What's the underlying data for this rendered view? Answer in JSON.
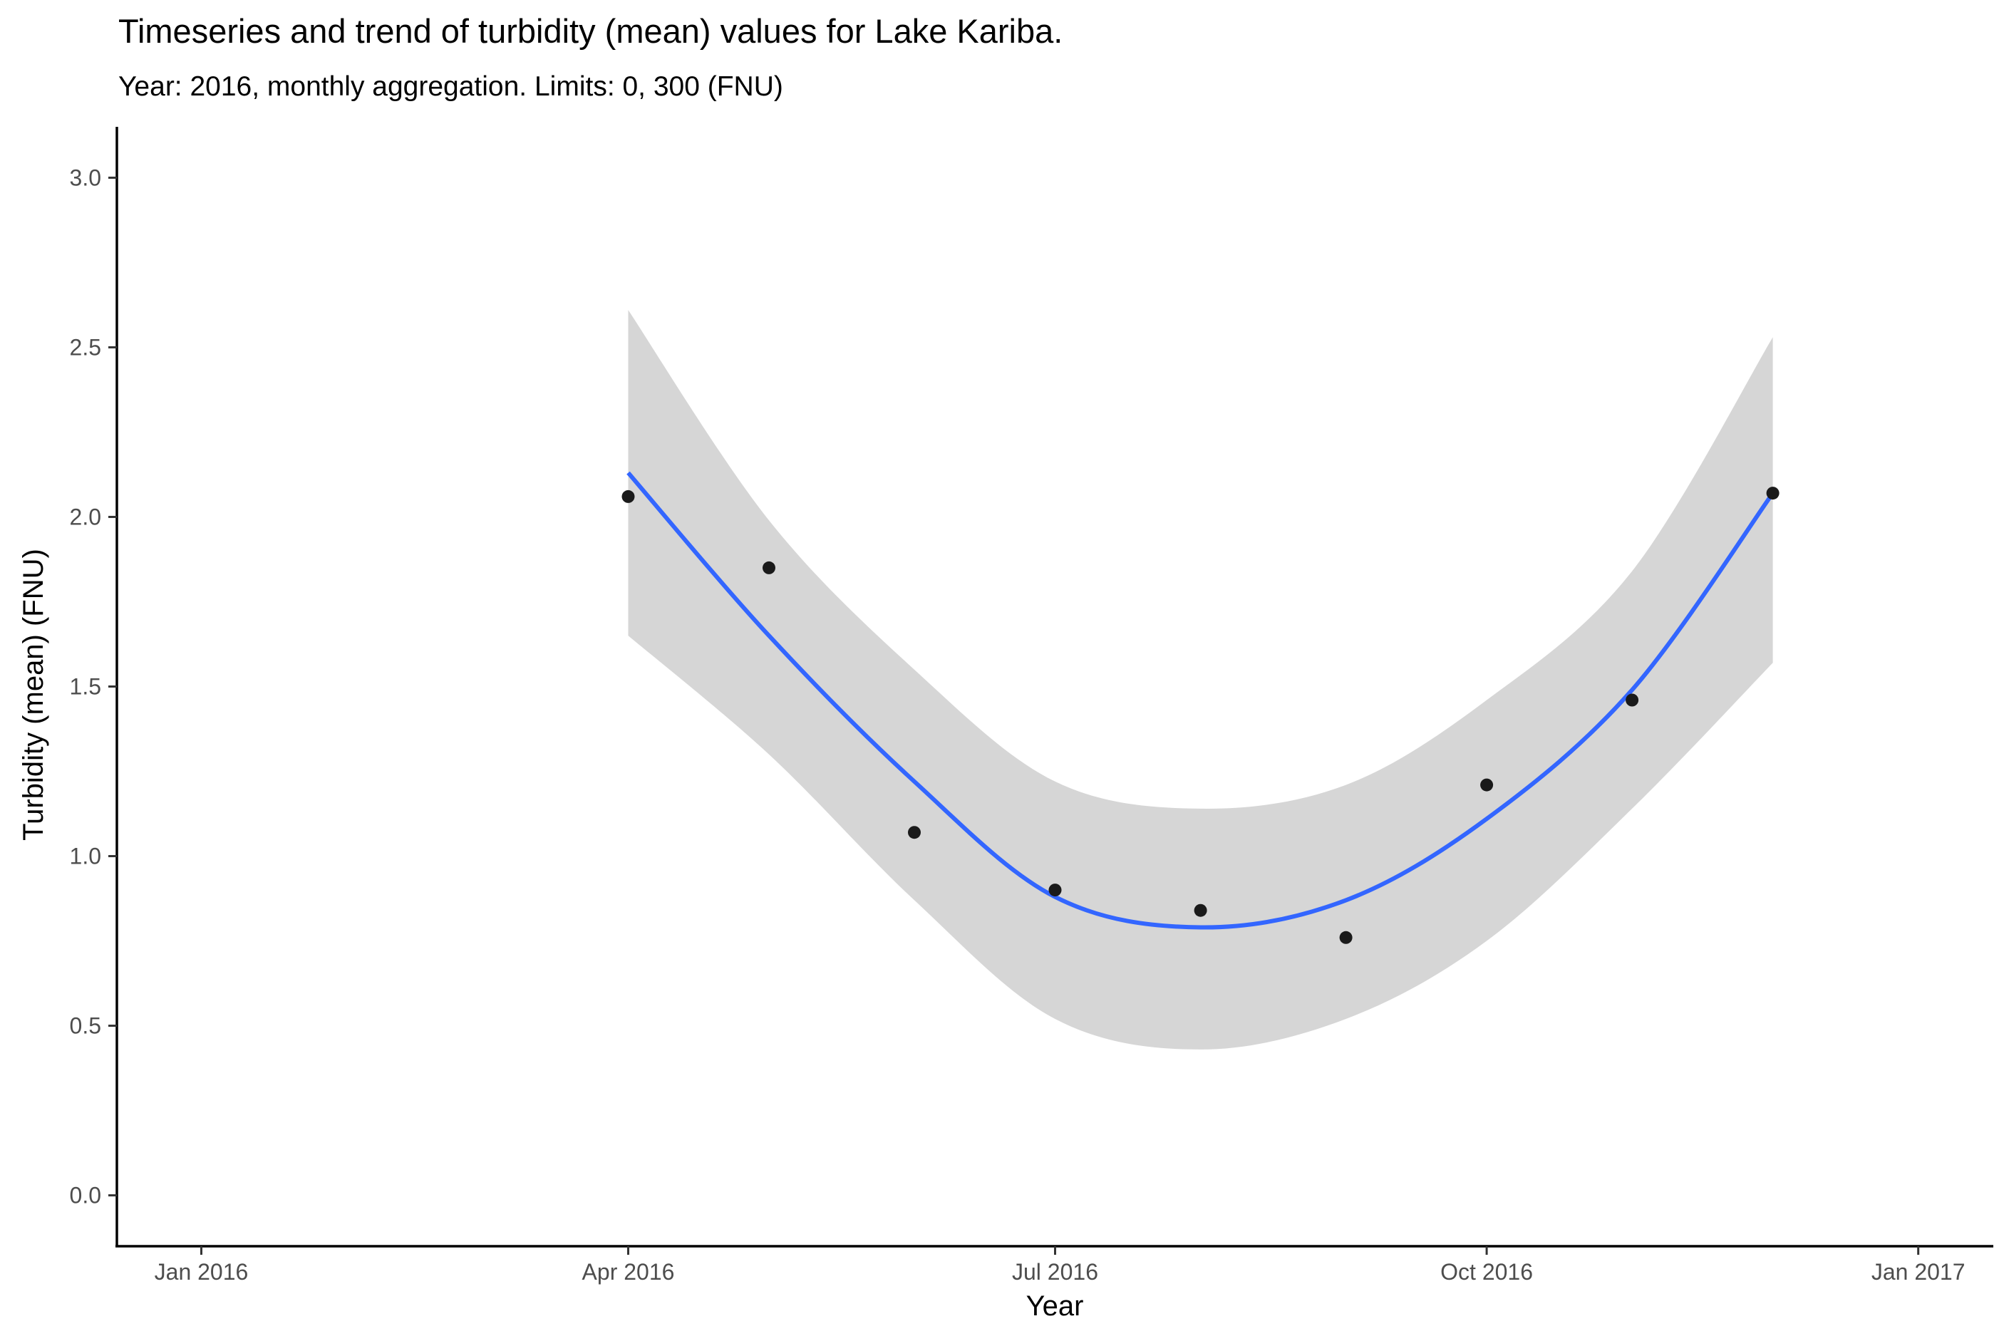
{
  "chart_data": {
    "type": "scatter",
    "title": "Timeseries and trend of turbidity (mean) values for Lake Kariba.",
    "subtitle": "Year: 2016, monthly aggregation. Limits: 0, 300 (FNU)",
    "xlabel": "Year",
    "ylabel": "Turbidity (mean) (FNU)",
    "x_axis": {
      "kind": "date",
      "range": [
        "2015-12-14",
        "2017-01-17"
      ],
      "ticks": [
        {
          "date": "2016-01-01",
          "label": "Jan 2016"
        },
        {
          "date": "2016-04-01",
          "label": "Apr 2016"
        },
        {
          "date": "2016-07-01",
          "label": "Jul 2016"
        },
        {
          "date": "2016-10-01",
          "label": "Oct 2016"
        },
        {
          "date": "2017-01-01",
          "label": "Jan 2017"
        }
      ]
    },
    "y_axis": {
      "range": [
        -0.15,
        3.15
      ],
      "ticks": [
        {
          "value": 0.0,
          "label": "0.0"
        },
        {
          "value": 0.5,
          "label": "0.5"
        },
        {
          "value": 1.0,
          "label": "1.0"
        },
        {
          "value": 1.5,
          "label": "1.5"
        },
        {
          "value": 2.0,
          "label": "2.0"
        },
        {
          "value": 2.5,
          "label": "2.5"
        },
        {
          "value": 3.0,
          "label": "3.0"
        }
      ]
    },
    "grid": false,
    "points": [
      {
        "x": "2016-04-01",
        "y": 2.06
      },
      {
        "x": "2016-05-01",
        "y": 1.85
      },
      {
        "x": "2016-06-01",
        "y": 1.07
      },
      {
        "x": "2016-07-01",
        "y": 0.9
      },
      {
        "x": "2016-08-01",
        "y": 0.84
      },
      {
        "x": "2016-09-01",
        "y": 0.76
      },
      {
        "x": "2016-10-01",
        "y": 1.21
      },
      {
        "x": "2016-11-01",
        "y": 1.46
      },
      {
        "x": "2016-12-01",
        "y": 2.07
      }
    ],
    "trend": {
      "x": [
        "2016-04-01",
        "2016-05-01",
        "2016-06-01",
        "2016-07-01",
        "2016-08-01",
        "2016-09-01",
        "2016-10-01",
        "2016-11-01",
        "2016-12-01"
      ],
      "y": [
        2.13,
        1.65,
        1.22,
        0.88,
        0.79,
        0.87,
        1.11,
        1.49,
        2.07
      ],
      "lower": [
        1.65,
        1.3,
        0.87,
        0.52,
        0.43,
        0.52,
        0.75,
        1.14,
        1.57
      ],
      "upper": [
        2.61,
        1.99,
        1.55,
        1.22,
        1.14,
        1.21,
        1.46,
        1.84,
        2.53
      ]
    },
    "colors": {
      "points": "#1a1a1a",
      "trend_line": "#3366ff",
      "confidence_band": "#d6d6d6"
    }
  }
}
